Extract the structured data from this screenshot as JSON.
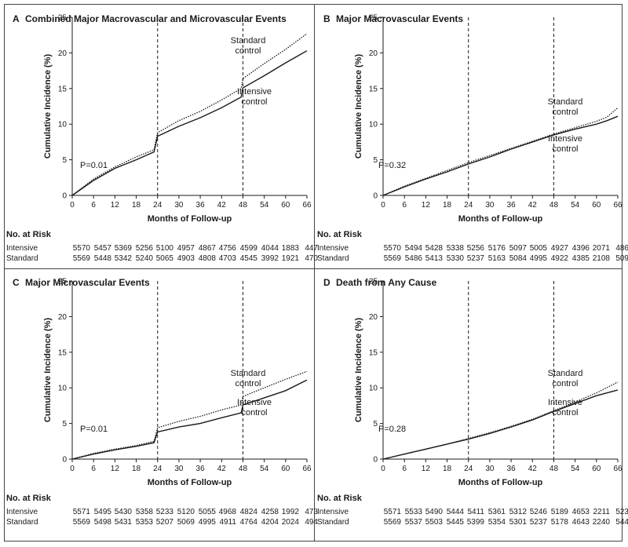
{
  "axis": {
    "ylabel": "Cumulative Incidence (%)",
    "xlabel": "Months of Follow-up",
    "y_ticks": [
      "0",
      "5",
      "10",
      "15",
      "20",
      "25"
    ],
    "x_ticks": [
      "0",
      "6",
      "12",
      "18",
      "24",
      "30",
      "36",
      "42",
      "48",
      "54",
      "60",
      "66"
    ]
  },
  "risk_table": {
    "heading": "No. at Risk",
    "row_labels": [
      "Intensive",
      "Standard"
    ]
  },
  "panels": [
    {
      "letter": "A",
      "title": "Combined Major Macrovascular and Microvascular Events",
      "p_value": "P=0.01",
      "labels": {
        "standard": [
          "Standard",
          "control"
        ],
        "intensive": [
          "Intensive",
          "control"
        ]
      },
      "risk": {
        "intensive": [
          "5570",
          "5457",
          "5369",
          "5256",
          "5100",
          "4957",
          "4867",
          "4756",
          "4599",
          "4044",
          "1883",
          "447"
        ],
        "standard": [
          "5569",
          "5448",
          "5342",
          "5240",
          "5065",
          "4903",
          "4808",
          "4703",
          "4545",
          "3992",
          "1921",
          "470"
        ]
      }
    },
    {
      "letter": "B",
      "title": "Major Macrovascular Events",
      "p_value": "P=0.32",
      "labels": {
        "standard": [
          "Standard",
          "control"
        ],
        "intensive": [
          "Intensive",
          "control"
        ]
      },
      "risk": {
        "intensive": [
          "5570",
          "5494",
          "5428",
          "5338",
          "5256",
          "5176",
          "5097",
          "5005",
          "4927",
          "4396",
          "2071",
          "486"
        ],
        "standard": [
          "5569",
          "5486",
          "5413",
          "5330",
          "5237",
          "5163",
          "5084",
          "4995",
          "4922",
          "4385",
          "2108",
          "509"
        ]
      }
    },
    {
      "letter": "C",
      "title": "Major Microvascular Events",
      "p_value": "P=0.01",
      "labels": {
        "standard": [
          "Standard",
          "control"
        ],
        "intensive": [
          "Intensive",
          "control"
        ]
      },
      "risk": {
        "intensive": [
          "5571",
          "5495",
          "5430",
          "5358",
          "5233",
          "5120",
          "5055",
          "4968",
          "4824",
          "4258",
          "1992",
          "473"
        ],
        "standard": [
          "5569",
          "5498",
          "5431",
          "5353",
          "5207",
          "5069",
          "4995",
          "4911",
          "4764",
          "4204",
          "2024",
          "494"
        ]
      }
    },
    {
      "letter": "D",
      "title": "Death from Any Cause",
      "p_value": "P=0.28",
      "labels": {
        "standard": [
          "Standard",
          "control"
        ],
        "intensive": [
          "Intensive",
          "control"
        ]
      },
      "risk": {
        "intensive": [
          "5571",
          "5533",
          "5490",
          "5444",
          "5411",
          "5361",
          "5312",
          "5246",
          "5189",
          "4653",
          "2211",
          "523"
        ],
        "standard": [
          "5569",
          "5537",
          "5503",
          "5445",
          "5399",
          "5354",
          "5301",
          "5237",
          "5178",
          "4643",
          "2240",
          "544"
        ]
      }
    }
  ],
  "chart_data": [
    {
      "type": "line",
      "title": "Combined Major Macrovascular and Microvascular Events",
      "xlabel": "Months of Follow-up",
      "ylabel": "Cumulative Incidence (%)",
      "xlim": [
        0,
        66
      ],
      "ylim": [
        0,
        25
      ],
      "reference_lines_x": [
        24,
        48
      ],
      "series": [
        {
          "name": "Standard control",
          "style": "dotted",
          "x": [
            0,
            6,
            12,
            18,
            23,
            24,
            30,
            36,
            42,
            47.5,
            48,
            54,
            60,
            66
          ],
          "y": [
            0,
            2.3,
            4.0,
            5.4,
            6.4,
            8.8,
            10.5,
            11.8,
            13.4,
            15.0,
            16.4,
            18.5,
            20.5,
            22.7
          ]
        },
        {
          "name": "Intensive control",
          "style": "solid",
          "x": [
            0,
            6,
            12,
            18,
            23,
            24,
            30,
            36,
            42,
            47.5,
            48,
            54,
            60,
            66
          ],
          "y": [
            0,
            2.1,
            3.8,
            5.0,
            6.1,
            8.3,
            9.7,
            10.9,
            12.3,
            13.8,
            15.1,
            16.8,
            18.6,
            20.3
          ]
        }
      ]
    },
    {
      "type": "line",
      "title": "Major Macrovascular Events",
      "xlabel": "Months of Follow-up",
      "ylabel": "Cumulative Incidence (%)",
      "xlim": [
        0,
        66
      ],
      "ylim": [
        0,
        25
      ],
      "reference_lines_x": [
        24,
        48
      ],
      "series": [
        {
          "name": "Standard control",
          "style": "dotted",
          "x": [
            0,
            6,
            12,
            18,
            24,
            30,
            36,
            42,
            48,
            54,
            60,
            63,
            66
          ],
          "y": [
            0,
            1.3,
            2.4,
            3.5,
            4.6,
            5.6,
            6.6,
            7.6,
            8.6,
            9.5,
            10.4,
            11.0,
            12.3
          ]
        },
        {
          "name": "Intensive control",
          "style": "solid",
          "x": [
            0,
            6,
            12,
            18,
            24,
            30,
            36,
            42,
            48,
            54,
            60,
            63,
            66
          ],
          "y": [
            0,
            1.2,
            2.3,
            3.3,
            4.4,
            5.4,
            6.5,
            7.5,
            8.5,
            9.3,
            10.0,
            10.5,
            11.1
          ]
        }
      ]
    },
    {
      "type": "line",
      "title": "Major Microvascular Events",
      "xlabel": "Months of Follow-up",
      "ylabel": "Cumulative Incidence (%)",
      "xlim": [
        0,
        66
      ],
      "ylim": [
        0,
        25
      ],
      "reference_lines_x": [
        24,
        48
      ],
      "series": [
        {
          "name": "Standard control",
          "style": "dotted",
          "x": [
            0,
            6,
            12,
            18,
            23,
            24,
            30,
            36,
            42,
            47.5,
            48,
            54,
            60,
            66
          ],
          "y": [
            0,
            0.8,
            1.4,
            1.9,
            2.5,
            4.4,
            5.3,
            6.0,
            6.9,
            7.6,
            8.8,
            10.0,
            11.2,
            12.3
          ]
        },
        {
          "name": "Intensive control",
          "style": "solid",
          "x": [
            0,
            6,
            12,
            18,
            23,
            24,
            30,
            36,
            42,
            47.5,
            48,
            54,
            60,
            66
          ],
          "y": [
            0,
            0.7,
            1.3,
            1.8,
            2.3,
            3.8,
            4.5,
            5.0,
            5.8,
            6.5,
            7.6,
            8.6,
            9.6,
            11.1
          ]
        }
      ]
    },
    {
      "type": "line",
      "title": "Death from Any Cause",
      "xlabel": "Months of Follow-up",
      "ylabel": "Cumulative Incidence (%)",
      "xlim": [
        0,
        66
      ],
      "ylim": [
        0,
        25
      ],
      "reference_lines_x": [
        24,
        48
      ],
      "series": [
        {
          "name": "Standard control",
          "style": "dotted",
          "x": [
            0,
            6,
            12,
            18,
            24,
            30,
            36,
            42,
            48,
            54,
            60,
            66
          ],
          "y": [
            0,
            0.7,
            1.4,
            2.1,
            2.9,
            3.7,
            4.6,
            5.6,
            6.8,
            8.0,
            9.3,
            10.8
          ]
        },
        {
          "name": "Intensive control",
          "style": "solid",
          "x": [
            0,
            6,
            12,
            18,
            24,
            30,
            36,
            42,
            48,
            54,
            60,
            66
          ],
          "y": [
            0,
            0.7,
            1.4,
            2.1,
            2.8,
            3.6,
            4.5,
            5.5,
            6.7,
            7.8,
            8.9,
            9.7
          ]
        }
      ]
    }
  ]
}
